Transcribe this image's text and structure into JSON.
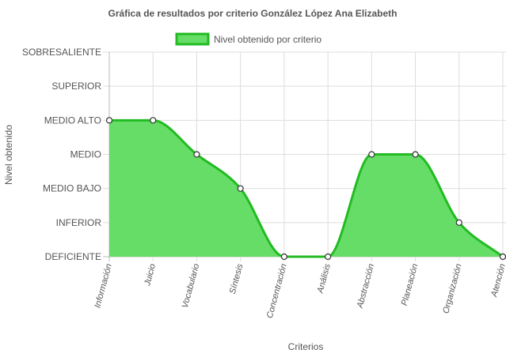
{
  "chart_data": {
    "type": "area",
    "title": "Gráfica de resultados por criterio González López Ana Elizabeth",
    "xlabel": "Criterios",
    "ylabel": "Nivel obtenido",
    "y_levels": [
      "DEFICIENTE",
      "INFERIOR",
      "MEDIO BAJO",
      "MEDIO",
      "MEDIO ALTO",
      "SUPERIOR",
      "SOBRESALIENTE"
    ],
    "categories": [
      "Información",
      "Juicio",
      "Vocabulario",
      "Síntesis",
      "Concentración",
      "Análisis",
      "Abstracción",
      "Planeación",
      "Organización",
      "Atención"
    ],
    "series": [
      {
        "name": "Nivel obtenido por criterio",
        "values": [
          "MEDIO ALTO",
          "MEDIO ALTO",
          "MEDIO",
          "MEDIO BAJO",
          "DEFICIENTE",
          "DEFICIENTE",
          "MEDIO",
          "MEDIO",
          "INFERIOR",
          "DEFICIENTE"
        ]
      }
    ],
    "legend_position": "top",
    "grid": true,
    "colors": {
      "fill": "#66dd66",
      "line": "#22bb22",
      "point_fill": "#ffffff",
      "point_stroke": "#333333",
      "grid": "#dddddd"
    }
  }
}
